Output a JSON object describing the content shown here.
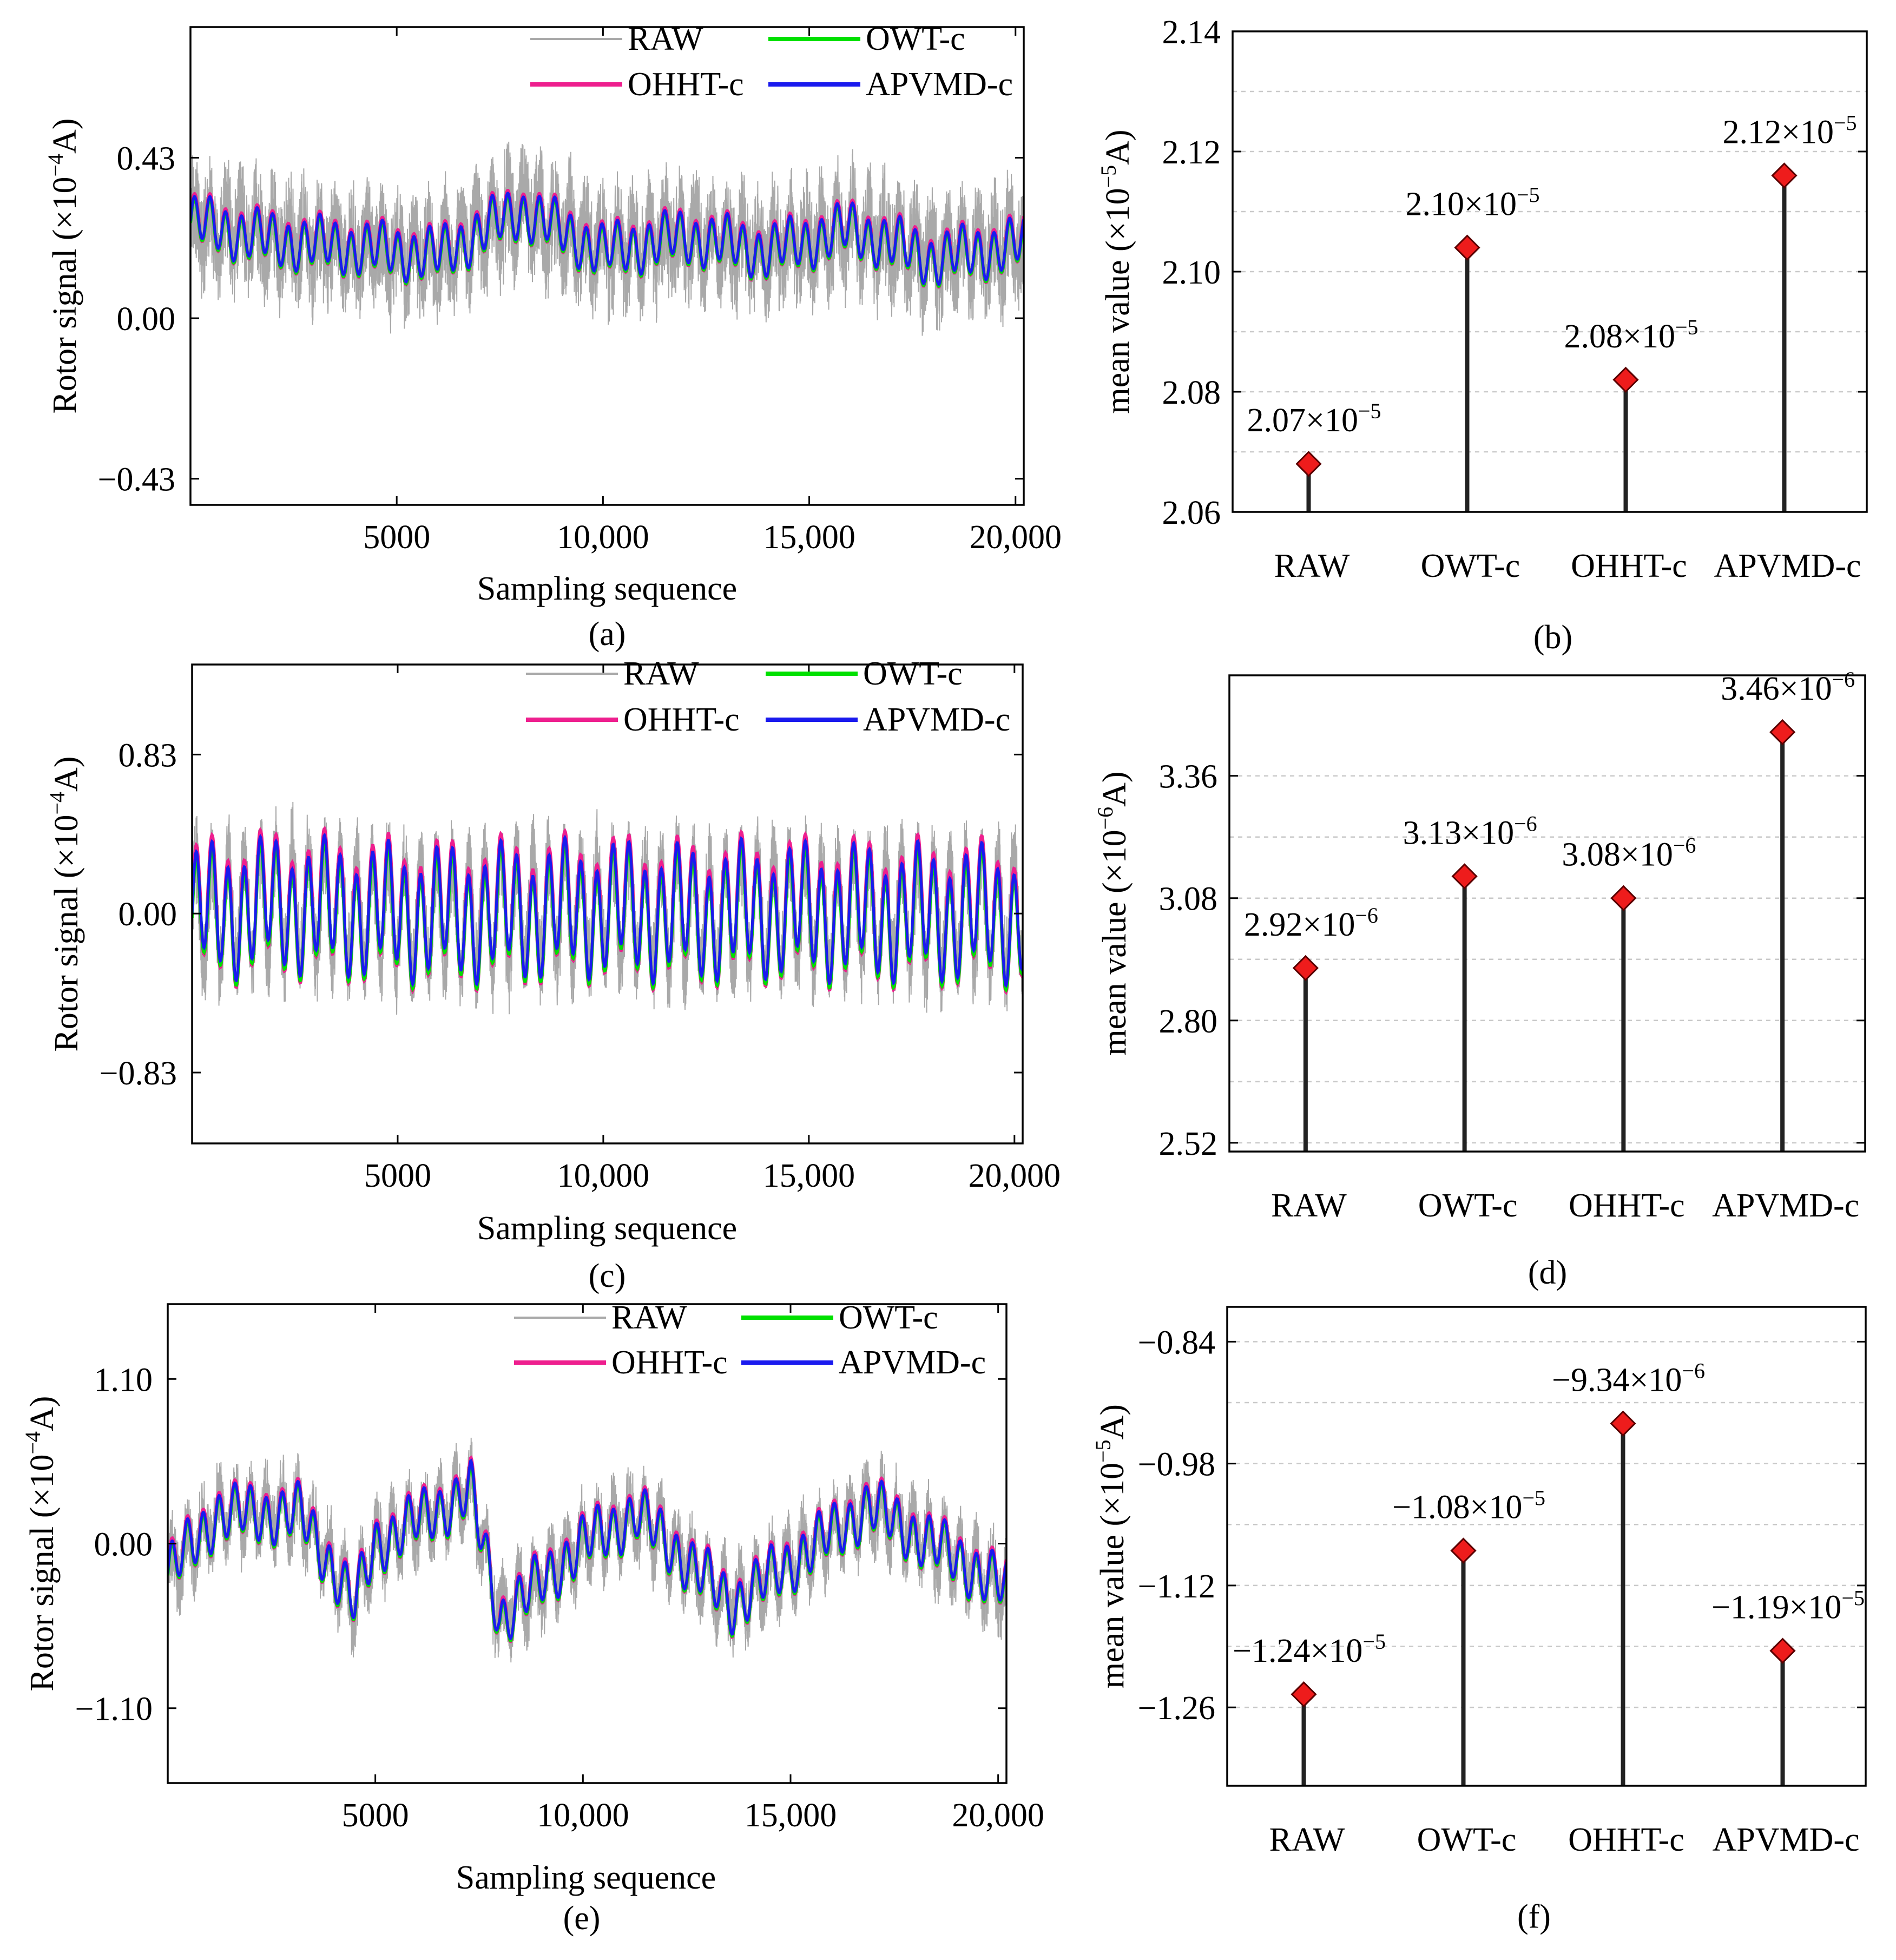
{
  "colors": {
    "raw": "#a9a9a9",
    "owt": "#00e000",
    "ohht": "#ee1f8e",
    "apvmd": "#1a1aee",
    "marker": "#ee1c1c"
  },
  "legend": {
    "raw": "RAW",
    "owt": "OWT-c",
    "ohht": "OHHT-c",
    "apvmd": "APVMD-c"
  },
  "chart_data": [
    {
      "id": "a",
      "panel_label": "(a)",
      "type": "line",
      "ylabel": "Rotor signal (×10",
      "ylabel_exp": "−4",
      "ylabel_tail": "A)",
      "xlabel": "Sampling sequence",
      "xlim": [
        0,
        20200
      ],
      "ylim": [
        -0.5,
        0.78
      ],
      "xticks": [
        5000,
        10000,
        15000,
        20000
      ],
      "xtick_labels": [
        "5000",
        "10,000",
        "15,000",
        "20,000"
      ],
      "yticks": [
        0.43,
        0.0,
        -0.43
      ],
      "ytick_labels": [
        "0.43",
        "0.00",
        "−0.43"
      ],
      "series": [
        {
          "name": "RAW",
          "x": [
            0,
            2000,
            4000,
            6000,
            8000,
            10000,
            12000,
            14000,
            16000,
            18000,
            20200
          ],
          "values": [
            0.26,
            0.21,
            0.19,
            0.17,
            0.29,
            0.18,
            0.22,
            0.18,
            0.24,
            0.16,
            0.2
          ]
        },
        {
          "name": "OWT-c",
          "x": [
            0,
            2000,
            4000,
            6000,
            8000,
            10000,
            12000,
            14000,
            16000,
            18000,
            20200
          ],
          "values": [
            0.26,
            0.21,
            0.19,
            0.17,
            0.29,
            0.18,
            0.22,
            0.18,
            0.24,
            0.16,
            0.2
          ]
        },
        {
          "name": "OHHT-c",
          "x": [
            0,
            2000,
            4000,
            6000,
            8000,
            10000,
            12000,
            14000,
            16000,
            18000,
            20200
          ],
          "values": [
            0.26,
            0.21,
            0.19,
            0.17,
            0.29,
            0.18,
            0.22,
            0.18,
            0.24,
            0.16,
            0.2
          ]
        },
        {
          "name": "APVMD-c",
          "x": [
            0,
            2000,
            4000,
            6000,
            8000,
            10000,
            12000,
            14000,
            16000,
            18000,
            20200
          ],
          "values": [
            0.26,
            0.21,
            0.19,
            0.17,
            0.29,
            0.18,
            0.22,
            0.18,
            0.24,
            0.16,
            0.2
          ]
        }
      ]
    },
    {
      "id": "b",
      "panel_label": "(b)",
      "type": "stem",
      "ylabel": "mean value (×10",
      "ylabel_exp": "−5",
      "ylabel_tail": "A)",
      "categories": [
        "RAW",
        "OWT-c",
        "OHHT-c",
        "APVMD-c"
      ],
      "values": [
        2.068,
        2.104,
        2.082,
        2.116
      ],
      "annotations": [
        {
          "mant": "2.07×10",
          "exp": "−5"
        },
        {
          "mant": "2.10×10",
          "exp": "−5"
        },
        {
          "mant": "2.08×10",
          "exp": "−5"
        },
        {
          "mant": "2.12×10",
          "exp": "−5"
        }
      ],
      "ylim": [
        2.06,
        2.14
      ],
      "yticks": [
        2.06,
        2.08,
        2.1,
        2.12,
        2.14
      ],
      "ytick_labels": [
        "2.06",
        "2.08",
        "2.10",
        "2.12",
        "2.14"
      ]
    },
    {
      "id": "c",
      "panel_label": "(c)",
      "type": "line",
      "ylabel": "Rotor signal (×10",
      "ylabel_exp": "−4",
      "ylabel_tail": "A)",
      "xlabel": "Sampling sequence",
      "xlim": [
        0,
        20200
      ],
      "ylim": [
        -1.2,
        1.3
      ],
      "xticks": [
        5000,
        10000,
        15000,
        20000
      ],
      "xtick_labels": [
        "5000",
        "10,000",
        "15,000",
        "20,000"
      ],
      "yticks": [
        0.83,
        0.0,
        -0.83
      ],
      "ytick_labels": [
        "0.83",
        "0.00",
        "−0.83"
      ],
      "series": [
        {
          "name": "RAW",
          "x": [
            0,
            2000,
            4000,
            6000,
            8000,
            10000,
            12000,
            14000,
            16000,
            18000,
            20200
          ],
          "values": [
            0.0,
            0.05,
            0.02,
            0.0,
            0.01,
            0.03,
            0.0,
            0.02,
            0.01,
            0.0,
            0.0
          ]
        },
        {
          "name": "OWT-c",
          "x": [
            0,
            2000,
            4000,
            6000,
            8000,
            10000,
            12000,
            14000,
            16000,
            18000,
            20200
          ],
          "values": [
            0.0,
            0.05,
            0.02,
            0.0,
            0.01,
            0.03,
            0.0,
            0.02,
            0.01,
            0.0,
            0.0
          ]
        },
        {
          "name": "OHHT-c",
          "x": [
            0,
            2000,
            4000,
            6000,
            8000,
            10000,
            12000,
            14000,
            16000,
            18000,
            20200
          ],
          "values": [
            0.0,
            0.05,
            0.02,
            0.0,
            0.01,
            0.03,
            0.0,
            0.02,
            0.01,
            0.0,
            0.0
          ]
        },
        {
          "name": "APVMD-c",
          "x": [
            0,
            2000,
            4000,
            6000,
            8000,
            10000,
            12000,
            14000,
            16000,
            18000,
            20200
          ],
          "values": [
            0.0,
            0.05,
            0.02,
            0.0,
            0.01,
            0.03,
            0.0,
            0.02,
            0.01,
            0.0,
            0.0
          ]
        }
      ]
    },
    {
      "id": "d",
      "panel_label": "(d)",
      "type": "stem",
      "ylabel": "mean value (×10",
      "ylabel_exp": "−6",
      "ylabel_tail": "A)",
      "categories": [
        "RAW",
        "OWT-c",
        "OHHT-c",
        "APVMD-c"
      ],
      "values": [
        2.92,
        3.13,
        3.08,
        3.46
      ],
      "annotations": [
        {
          "mant": "2.92×10",
          "exp": "−6"
        },
        {
          "mant": "3.13×10",
          "exp": "−6"
        },
        {
          "mant": "3.08×10",
          "exp": "−6"
        },
        {
          "mant": "3.46×10",
          "exp": "−6"
        }
      ],
      "ylim": [
        2.5,
        3.59
      ],
      "yticks": [
        2.52,
        2.8,
        3.08,
        3.36
      ],
      "ytick_labels": [
        "2.52",
        "2.80",
        "3.08",
        "3.36"
      ]
    },
    {
      "id": "e",
      "panel_label": "(e)",
      "type": "line",
      "ylabel": "Rotor signal (×10",
      "ylabel_exp": "−4",
      "ylabel_tail": "A)",
      "xlabel": "Sampling sequence",
      "xlim": [
        0,
        20200
      ],
      "ylim": [
        -1.6,
        1.6
      ],
      "xticks": [
        5000,
        10000,
        15000,
        20000
      ],
      "xtick_labels": [
        "5000",
        "10,000",
        "15,000",
        "20,000"
      ],
      "yticks": [
        1.1,
        0.0,
        -1.1
      ],
      "ytick_labels": [
        "1.10",
        "0.00",
        "−1.10"
      ],
      "series": [
        {
          "name": "RAW",
          "x": [
            0,
            1200,
            3200,
            4500,
            5000,
            7300,
            8000,
            10000,
            11300,
            13600,
            16900,
            20200
          ],
          "values": [
            -0.2,
            0.2,
            0.2,
            -0.4,
            0.0,
            0.35,
            -0.5,
            0.0,
            0.2,
            -0.4,
            0.25,
            -0.3
          ]
        },
        {
          "name": "OWT-c",
          "x": [
            0,
            1200,
            3200,
            4500,
            5000,
            7300,
            8000,
            10000,
            11300,
            13600,
            16900,
            20200
          ],
          "values": [
            -0.2,
            0.2,
            0.2,
            -0.4,
            0.0,
            0.35,
            -0.5,
            0.0,
            0.2,
            -0.4,
            0.25,
            -0.3
          ]
        },
        {
          "name": "OHHT-c",
          "x": [
            0,
            1200,
            3200,
            4500,
            5000,
            7300,
            8000,
            10000,
            11300,
            13600,
            16900,
            20200
          ],
          "values": [
            -0.2,
            0.2,
            0.2,
            -0.4,
            0.0,
            0.35,
            -0.5,
            0.0,
            0.2,
            -0.4,
            0.25,
            -0.3
          ]
        },
        {
          "name": "APVMD-c",
          "x": [
            0,
            1200,
            3200,
            4500,
            5000,
            7300,
            8000,
            10000,
            11300,
            13600,
            16900,
            20200
          ],
          "values": [
            -0.2,
            0.2,
            0.2,
            -0.4,
            0.0,
            0.35,
            -0.5,
            0.0,
            0.2,
            -0.4,
            0.25,
            -0.3
          ]
        }
      ]
    },
    {
      "id": "f",
      "panel_label": "(f)",
      "type": "stem",
      "ylabel": "mean value (×10",
      "ylabel_exp": "−5",
      "ylabel_tail": "A)",
      "categories": [
        "RAW",
        "OWT-c",
        "OHHT-c",
        "APVMD-c"
      ],
      "values": [
        -1.245,
        -1.08,
        -0.934,
        -1.195
      ],
      "annotations": [
        {
          "mant": "−1.24×10",
          "exp": "−5"
        },
        {
          "mant": "−1.08×10",
          "exp": "−5"
        },
        {
          "mant": "−9.34×10",
          "exp": "−6"
        },
        {
          "mant": "−1.19×10",
          "exp": "−5"
        }
      ],
      "ylim": [
        -1.35,
        -0.8
      ],
      "yticks": [
        -0.84,
        -0.98,
        -1.12,
        -1.26
      ],
      "ytick_labels": [
        "−0.84",
        "−0.98",
        "−1.12",
        "−1.26"
      ]
    }
  ]
}
